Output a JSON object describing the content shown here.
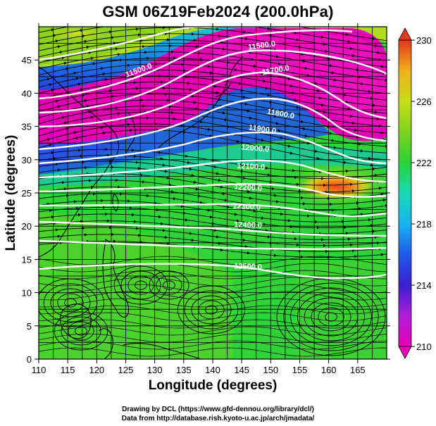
{
  "title": "GSM 06Z19Feb2024 (200.0hPa)",
  "axes": {
    "xlabel": "Longitude (degrees)",
    "ylabel": "Latitude  (degrees)",
    "xlim": [
      110,
      170
    ],
    "ylim": [
      0,
      50
    ],
    "xticks": [
      "110",
      "115",
      "120",
      "125",
      "130",
      "135",
      "140",
      "145",
      "150",
      "155",
      "160",
      "165"
    ],
    "yticks": [
      "0",
      "5",
      "10",
      "15",
      "20",
      "25",
      "30",
      "35",
      "40",
      "45"
    ]
  },
  "colorbar": {
    "min": 210,
    "max": 230,
    "ticks": [
      "210",
      "214",
      "218",
      "222",
      "226",
      "230"
    ],
    "colors": [
      "#e600b4",
      "#b01fd8",
      "#3a1fd0",
      "#1f5ae8",
      "#19b3f0",
      "#19d9b5",
      "#2ad23a",
      "#7ed21f",
      "#c8dc19",
      "#f0c31e",
      "#f08a1e",
      "#e0381e"
    ]
  },
  "contours": {
    "labels": [
      "11500.0",
      "11500.0",
      "11700.0",
      "11800.0",
      "11900.0",
      "12000.0",
      "12100.0",
      "12200.0",
      "12300.0",
      "12400.0",
      "12500.0"
    ]
  },
  "credits": {
    "line1": "Drawing by DCL (https://www.gfd-dennou.org/library/dcl/)",
    "line2": "Data from http://database.rish.kyoto-u.ac.jp/arch/jmadata/"
  }
}
